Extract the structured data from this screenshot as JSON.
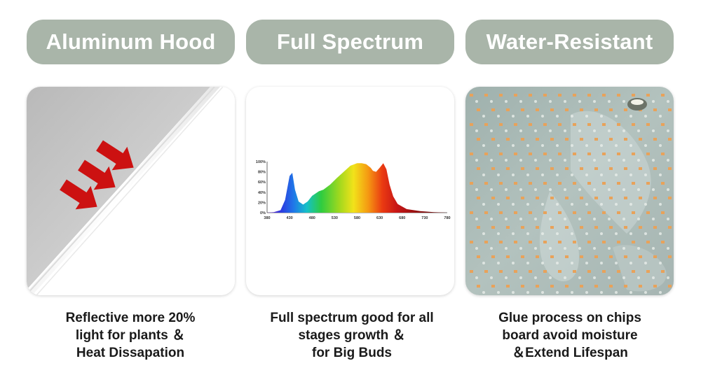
{
  "features": [
    {
      "title": "Aluminum Hood",
      "caption": [
        "Reflective more 20%",
        "light for plants ＆",
        "Heat Dissapation"
      ]
    },
    {
      "title": "Full Spectrum",
      "caption": [
        "Full spectrum good for all",
        "stages growth ＆",
        "for Big Buds"
      ]
    },
    {
      "title": "Water-Resistant",
      "caption": [
        "Glue process on chips",
        "board avoid moisture",
        "＆Extend Lifespan"
      ]
    }
  ],
  "colors": {
    "pill_bg": "#a9b5a9",
    "arrow_red": "#cc1111",
    "aluminum": "#d2d2d2",
    "led_chip": "#e8a25a",
    "board": "#a7b7b3"
  },
  "icons": [
    "red-arrow-icon",
    "red-arrow-icon",
    "red-arrow-icon"
  ],
  "chart_data": {
    "type": "area",
    "title": "",
    "xlabel": "",
    "ylabel": "",
    "x_ticks": [
      "380",
      "430",
      "480",
      "530",
      "580",
      "630",
      "680",
      "730",
      "780"
    ],
    "y_ticks": [
      "0%",
      "20%",
      "40%",
      "60%",
      "80%",
      "100%"
    ],
    "xlim": [
      380,
      780
    ],
    "ylim": [
      0,
      100
    ],
    "series": [
      {
        "x": [
          380,
          395,
          410,
          420,
          430,
          436,
          442,
          450,
          460,
          470,
          480,
          495,
          505,
          520,
          535,
          550,
          565,
          580,
          590,
          600,
          610,
          615,
          622,
          630,
          638,
          645,
          652,
          660,
          670,
          690,
          720,
          750,
          780
        ],
        "values": [
          0,
          1,
          5,
          25,
          72,
          78,
          45,
          22,
          16,
          22,
          33,
          42,
          45,
          55,
          68,
          80,
          92,
          97,
          97,
          95,
          88,
          82,
          80,
          88,
          97,
          85,
          55,
          32,
          17,
          7,
          3,
          1,
          0
        ]
      }
    ]
  }
}
